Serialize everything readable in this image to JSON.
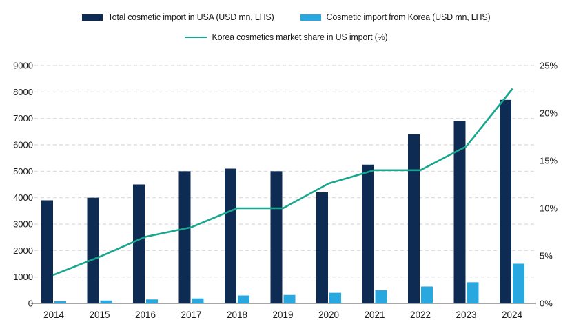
{
  "chart_data": {
    "type": "bar",
    "subtype": "grouped-bar-with-line-combo",
    "title": "",
    "categories": [
      "2014",
      "2015",
      "2016",
      "2017",
      "2018",
      "2019",
      "2020",
      "2021",
      "2022",
      "2023",
      "2024"
    ],
    "series": [
      {
        "name": "Total cosmetic import in USA (USD mn, LHS)",
        "type": "bar",
        "axis": "left",
        "color": "#0e2b54",
        "values": [
          3900,
          4000,
          4500,
          5000,
          5100,
          5000,
          4200,
          5250,
          6400,
          6900,
          7700
        ]
      },
      {
        "name": "Cosmetic import from Korea (USD mn, LHS)",
        "type": "bar",
        "axis": "left",
        "color": "#29a8e0",
        "values": [
          80,
          110,
          150,
          190,
          300,
          320,
          400,
          500,
          640,
          800,
          1500
        ]
      },
      {
        "name": "Korea cosmetics market share in US import (%)",
        "type": "line",
        "axis": "right",
        "color": "#18a78e",
        "values": [
          3.0,
          4.9,
          7.0,
          8.0,
          10.0,
          10.0,
          12.6,
          14.0,
          14.0,
          16.5,
          22.5
        ]
      }
    ],
    "left_axis": {
      "min": 0,
      "max": 9000,
      "step": 1000,
      "tick_labels": [
        "0",
        "1000",
        "2000",
        "3000",
        "4000",
        "5000",
        "6000",
        "7000",
        "8000",
        "9000"
      ]
    },
    "right_axis": {
      "min": 0,
      "max": 25,
      "step": 5,
      "tick_labels": [
        "0%",
        "5%",
        "10%",
        "15%",
        "20%",
        "25%"
      ]
    },
    "grid": "horizontal-dashed",
    "legend_position": "top",
    "colors": {
      "gridline": "#d9d9d9",
      "axis_line": "#8c8c8c",
      "text": "#1a1a1a",
      "background": "#ffffff"
    }
  }
}
